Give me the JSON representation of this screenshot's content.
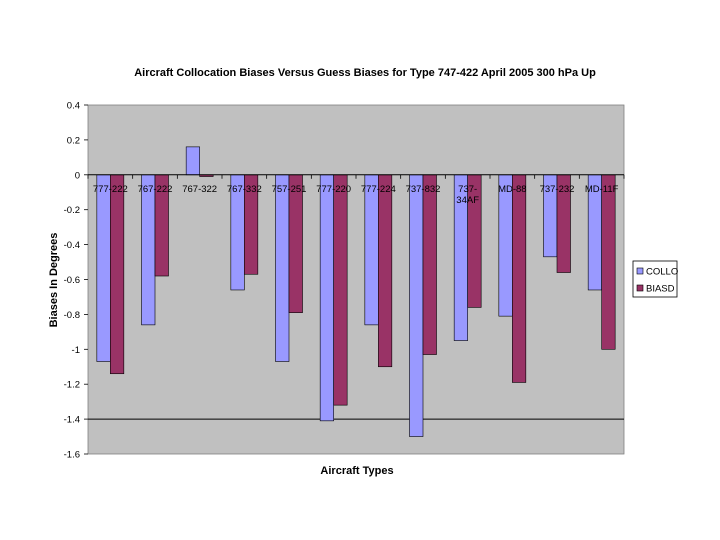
{
  "chart_data": {
    "type": "bar",
    "title": "Aircraft Collocation Biases Versus Guess Biases for Type 747-422 April 2005 300 hPa Up",
    "xlabel": "Aircraft Types",
    "ylabel": "Biases In Degrees",
    "ylim": [
      -1.6,
      0.4
    ],
    "yticks": [
      0.4,
      0.2,
      0,
      -0.2,
      -0.4,
      -0.6,
      -0.8,
      -1,
      -1.2,
      -1.4,
      -1.6
    ],
    "ytick_labels": [
      "0.4",
      "0.2",
      "0",
      "-0.2",
      "-0.4",
      "-0.6",
      "-0.8",
      "-1",
      "-1.2",
      "-1.4",
      "-1.6"
    ],
    "categories": [
      "777-222",
      "767-222",
      "767-322",
      "767-332",
      "757-251",
      "777-220",
      "777-224",
      "737-832",
      "737-34AF",
      "MD-88",
      "737-232",
      "MD-11F"
    ],
    "category_display": [
      [
        "777-222"
      ],
      [
        "767-222"
      ],
      [
        "767-322"
      ],
      [
        "767-332"
      ],
      [
        "757-251"
      ],
      [
        "777-220"
      ],
      [
        "777-224"
      ],
      [
        "737-832"
      ],
      [
        "737-",
        "34AF"
      ],
      [
        "MD-88"
      ],
      [
        "737-232"
      ],
      [
        "MD-11F"
      ]
    ],
    "series": [
      {
        "name": "COLLO",
        "color": "#9999ff",
        "values": [
          -1.07,
          -0.86,
          0.16,
          -0.66,
          -1.07,
          -1.41,
          -0.86,
          -1.5,
          -0.95,
          -0.81,
          -0.47,
          -0.66
        ]
      },
      {
        "name": "BIASD",
        "color": "#993366",
        "values": [
          -1.14,
          -0.58,
          -0.01,
          -0.57,
          -0.79,
          -1.32,
          -1.1,
          -1.03,
          -0.76,
          -1.19,
          -0.56,
          -1.0
        ]
      }
    ],
    "grid": false,
    "reference_line": -1.4,
    "plot_background": "#c0c0c0",
    "legend_position": "right"
  }
}
